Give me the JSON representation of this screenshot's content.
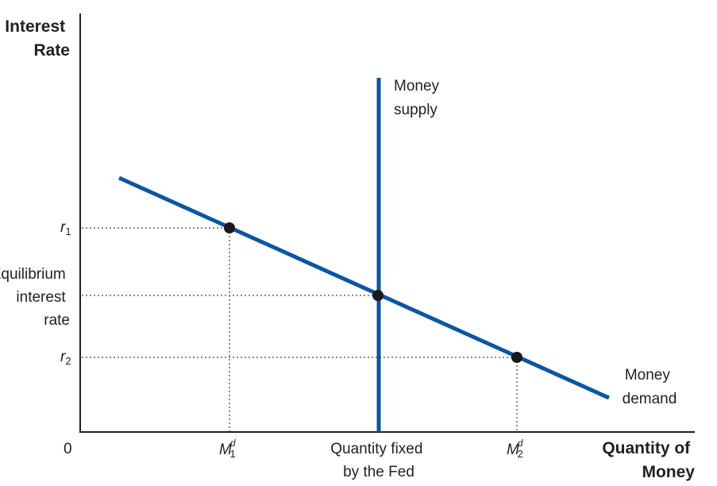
{
  "axes": {
    "y_title": [
      "Interest",
      "Rate"
    ],
    "x_title": [
      "Quantity of",
      "Money"
    ],
    "origin": "0"
  },
  "y_labels": {
    "r1": {
      "base": "r",
      "sub": "1"
    },
    "equilibrium": [
      "Equilibrium",
      "interest",
      "rate"
    ],
    "r2": {
      "base": "r",
      "sub": "2"
    }
  },
  "x_labels": {
    "m1": {
      "base": "M",
      "sup": "d",
      "sub": "1"
    },
    "fixed": [
      "Quantity fixed",
      "by the Fed"
    ],
    "m2": {
      "base": "M",
      "sup": "d",
      "sub": "2"
    }
  },
  "curves": {
    "supply": {
      "label": [
        "Money",
        "supply"
      ],
      "color": "#0b55a4"
    },
    "demand": {
      "label": [
        "Money",
        "demand"
      ],
      "color": "#0b55a4"
    }
  },
  "colors": {
    "axis": "#231f20",
    "point": "#1a1a1a",
    "guide": "#8c8c8c"
  }
}
